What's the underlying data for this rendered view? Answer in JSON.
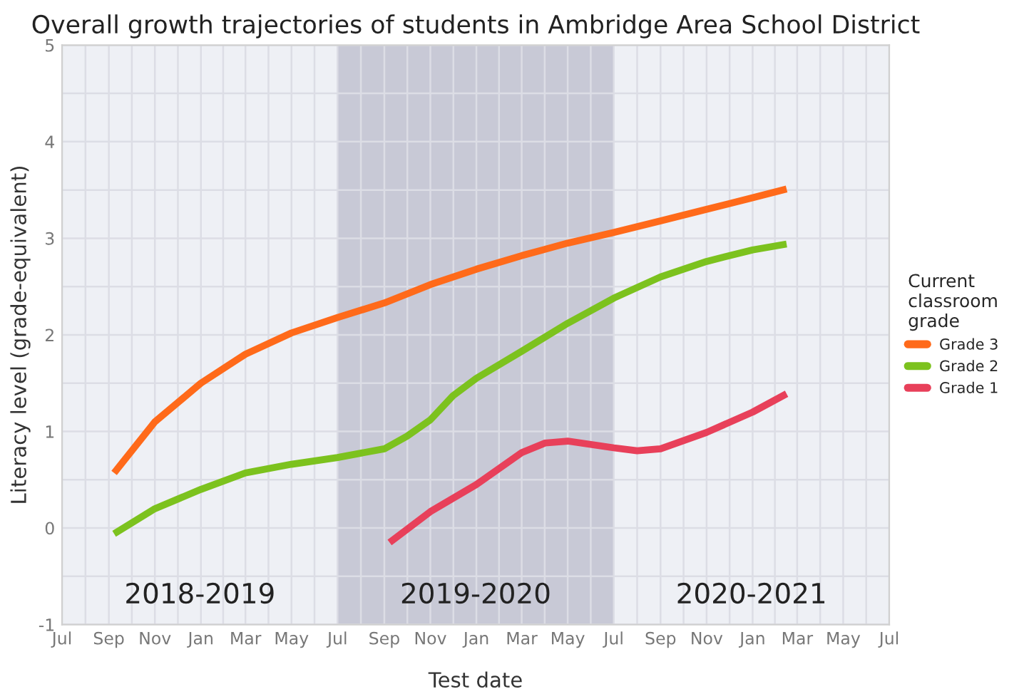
{
  "chart_data": {
    "type": "line",
    "title": "Overall growth trajectories of students in Ambridge Area School District",
    "xlabel": "Test date",
    "ylabel": "Literacy level (grade-equivalent)",
    "legend_title": "Current\nclassroom\ngrade",
    "series": [
      {
        "name": "Grade 3",
        "color": "#ff6a1a",
        "x": [
          "2018-09-08",
          "2018-11-01",
          "2019-01-01",
          "2019-03-01",
          "2019-05-01",
          "2019-07-01",
          "2019-09-01",
          "2019-11-01",
          "2020-01-01",
          "2020-03-01",
          "2020-05-01",
          "2020-07-01",
          "2020-09-01",
          "2020-11-01",
          "2021-01-01",
          "2021-02-15"
        ],
        "values": [
          0.57,
          1.1,
          1.5,
          1.8,
          2.02,
          2.18,
          2.33,
          2.52,
          2.68,
          2.82,
          2.95,
          3.06,
          3.18,
          3.3,
          3.42,
          3.51
        ]
      },
      {
        "name": "Grade 2",
        "color": "#7cc21e",
        "x": [
          "2018-09-08",
          "2018-11-01",
          "2019-01-01",
          "2019-03-01",
          "2019-05-01",
          "2019-07-01",
          "2019-09-01",
          "2019-10-01",
          "2019-11-01",
          "2019-12-01",
          "2020-01-01",
          "2020-03-01",
          "2020-05-01",
          "2020-07-01",
          "2020-09-01",
          "2020-11-01",
          "2021-01-01",
          "2021-02-15"
        ],
        "values": [
          -0.06,
          0.2,
          0.4,
          0.57,
          0.66,
          0.73,
          0.82,
          0.95,
          1.12,
          1.37,
          1.55,
          1.83,
          2.12,
          2.38,
          2.6,
          2.76,
          2.88,
          2.94
        ]
      },
      {
        "name": "Grade 1",
        "color": "#e8405a",
        "x": [
          "2019-09-08",
          "2019-11-01",
          "2020-01-01",
          "2020-03-01",
          "2020-04-01",
          "2020-05-01",
          "2020-07-01",
          "2020-08-01",
          "2020-09-01",
          "2020-11-01",
          "2021-01-01",
          "2021-02-15"
        ],
        "values": [
          -0.15,
          0.17,
          0.45,
          0.78,
          0.88,
          0.9,
          0.83,
          0.8,
          0.82,
          0.99,
          1.2,
          1.39
        ]
      }
    ],
    "bands": [
      {
        "axis": "x",
        "from": "2019-07-01",
        "to": "2020-07-01",
        "label": "2019-2020",
        "color": "#c8c9d6"
      }
    ],
    "annotations": [
      "2018-2019",
      "2020-2021"
    ],
    "xlim": [
      "2018-07-01",
      "2021-07-01"
    ],
    "xticks": [
      {
        "value": "2018-07-01",
        "label": "Jul"
      },
      {
        "value": "2018-09-01",
        "label": "Sep"
      },
      {
        "value": "2018-11-01",
        "label": "Nov"
      },
      {
        "value": "2019-01-01",
        "label": "Jan"
      },
      {
        "value": "2019-03-01",
        "label": "Mar"
      },
      {
        "value": "2019-05-01",
        "label": "May"
      },
      {
        "value": "2019-07-01",
        "label": "Jul"
      },
      {
        "value": "2019-09-01",
        "label": "Sep"
      },
      {
        "value": "2019-11-01",
        "label": "Nov"
      },
      {
        "value": "2020-01-01",
        "label": "Jan"
      },
      {
        "value": "2020-03-01",
        "label": "Mar"
      },
      {
        "value": "2020-05-01",
        "label": "May"
      },
      {
        "value": "2020-07-01",
        "label": "Jul"
      },
      {
        "value": "2020-09-01",
        "label": "Sep"
      },
      {
        "value": "2020-11-01",
        "label": "Nov"
      },
      {
        "value": "2021-01-01",
        "label": "Jan"
      },
      {
        "value": "2021-03-01",
        "label": "Mar"
      },
      {
        "value": "2021-05-01",
        "label": "May"
      },
      {
        "value": "2021-07-01",
        "label": "Jul"
      }
    ],
    "ylim": [
      -1,
      5
    ],
    "yticks": [
      -1,
      0,
      1,
      2,
      3,
      4,
      5
    ],
    "grid": true,
    "legend": "right",
    "marker": "none",
    "line_style": "solid"
  }
}
